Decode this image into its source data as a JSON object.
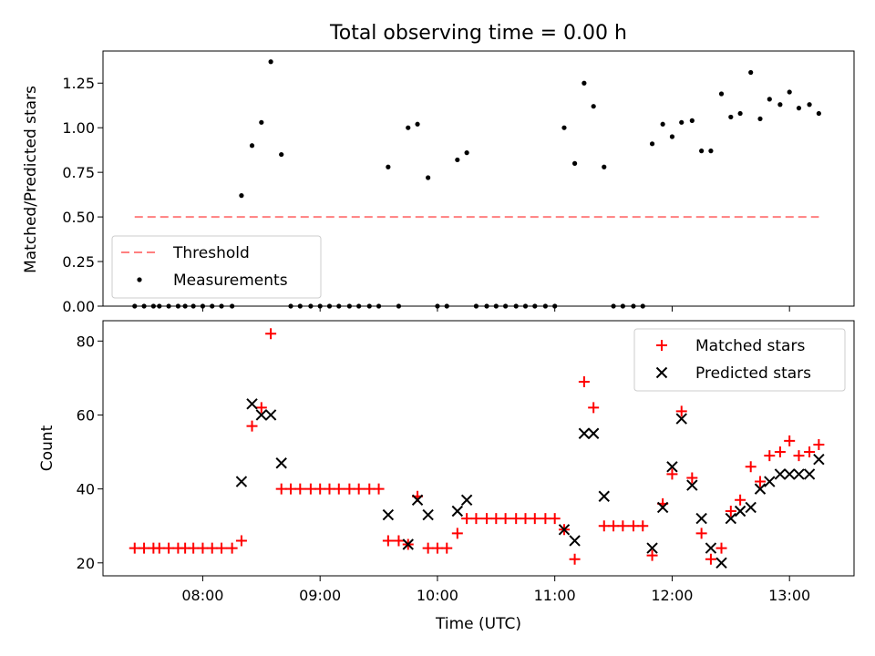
{
  "chart_data": [
    {
      "type": "scatter",
      "title": "Total observing time = 0.00 h",
      "xlabel": "",
      "ylabel": "Matched/Predicted stars",
      "xlim": [
        7.15,
        13.55
      ],
      "ylim": [
        0.0,
        1.43
      ],
      "xticks": [
        8,
        9,
        10,
        11,
        12,
        13
      ],
      "yticks": [
        0.0,
        0.25,
        0.5,
        0.75,
        1.0,
        1.25
      ],
      "ytick_labels": [
        "0.00",
        "0.25",
        "0.50",
        "0.75",
        "1.00",
        "1.25"
      ],
      "legend": {
        "position": "lower-left",
        "entries": [
          "Threshold",
          "Measurements"
        ]
      },
      "threshold": {
        "name": "Threshold",
        "y": 0.5,
        "x_range": [
          7.42,
          13.25
        ],
        "color": "#ff7f7f"
      },
      "series": [
        {
          "name": "Measurements",
          "color": "#000000",
          "x": [
            7.42,
            7.5,
            7.58,
            7.63,
            7.71,
            7.79,
            7.85,
            7.92,
            8.0,
            8.08,
            8.16,
            8.25,
            8.33,
            8.42,
            8.5,
            8.58,
            8.67,
            8.75,
            8.83,
            8.92,
            9.0,
            9.08,
            9.16,
            9.25,
            9.33,
            9.42,
            9.5,
            9.58,
            9.67,
            9.75,
            9.83,
            9.92,
            10.0,
            10.08,
            10.17,
            10.25,
            10.33,
            10.42,
            10.5,
            10.58,
            10.67,
            10.75,
            10.83,
            10.92,
            11.0,
            11.08,
            11.17,
            11.25,
            11.33,
            11.42,
            11.5,
            11.58,
            11.67,
            11.75,
            11.83,
            11.92,
            12.0,
            12.08,
            12.17,
            12.25,
            12.33,
            12.42,
            12.5,
            12.58,
            12.67,
            12.75,
            12.83,
            12.92,
            13.0,
            13.08,
            13.17,
            13.25
          ],
          "y": [
            0,
            0,
            0,
            0,
            0,
            0,
            0,
            0,
            0,
            0,
            0,
            0,
            0.62,
            0.9,
            1.03,
            1.37,
            0.85,
            0,
            0,
            0,
            0,
            0,
            0,
            0,
            0,
            0,
            0,
            0.78,
            0,
            1.0,
            1.02,
            0.72,
            0,
            0,
            0.82,
            0.86,
            0,
            0,
            0,
            0,
            0,
            0,
            0,
            0,
            0,
            1.0,
            0.8,
            1.25,
            1.12,
            0.78,
            0,
            0,
            0,
            0,
            0.91,
            1.02,
            0.95,
            1.03,
            1.04,
            0.87,
            0.87,
            1.19,
            1.06,
            1.08,
            1.31,
            1.05,
            1.16,
            1.13,
            1.2,
            1.11,
            1.13,
            1.08
          ]
        }
      ]
    },
    {
      "type": "scatter",
      "title": "",
      "xlabel": "Time (UTC)",
      "ylabel": "Count",
      "xlim": [
        7.15,
        13.55
      ],
      "ylim": [
        16.5,
        85.5
      ],
      "xticks": [
        8,
        9,
        10,
        11,
        12,
        13
      ],
      "xtick_labels": [
        "08:00",
        "09:00",
        "10:00",
        "11:00",
        "12:00",
        "13:00"
      ],
      "yticks": [
        20,
        40,
        60,
        80
      ],
      "ytick_labels": [
        "20",
        "40",
        "60",
        "80"
      ],
      "legend": {
        "position": "top-right",
        "entries": [
          "Matched stars",
          "Predicted stars"
        ]
      },
      "series": [
        {
          "name": "Matched stars",
          "marker": "plus",
          "color": "#ff0000",
          "x": [
            7.42,
            7.5,
            7.58,
            7.63,
            7.71,
            7.79,
            7.85,
            7.92,
            8.0,
            8.08,
            8.16,
            8.25,
            8.33,
            8.42,
            8.5,
            8.58,
            8.67,
            8.75,
            8.83,
            8.92,
            9.0,
            9.08,
            9.16,
            9.25,
            9.33,
            9.42,
            9.5,
            9.58,
            9.67,
            9.75,
            9.83,
            9.92,
            10.0,
            10.08,
            10.17,
            10.25,
            10.33,
            10.42,
            10.5,
            10.58,
            10.67,
            10.75,
            10.83,
            10.92,
            11.0,
            11.08,
            11.17,
            11.25,
            11.33,
            11.42,
            11.5,
            11.58,
            11.67,
            11.75,
            11.83,
            11.92,
            12.0,
            12.08,
            12.17,
            12.25,
            12.33,
            12.42,
            12.5,
            12.58,
            12.67,
            12.75,
            12.83,
            12.92,
            13.0,
            13.08,
            13.17,
            13.25
          ],
          "y": [
            24,
            24,
            24,
            24,
            24,
            24,
            24,
            24,
            24,
            24,
            24,
            24,
            26,
            57,
            62,
            82,
            40,
            40,
            40,
            40,
            40,
            40,
            40,
            40,
            40,
            40,
            40,
            26,
            26,
            25,
            38,
            24,
            24,
            24,
            28,
            32,
            32,
            32,
            32,
            32,
            32,
            32,
            32,
            32,
            32,
            29,
            21,
            69,
            62,
            30,
            30,
            30,
            30,
            30,
            22,
            36,
            44,
            61,
            43,
            28,
            21,
            24,
            34,
            37,
            46,
            42,
            49,
            50,
            53,
            49,
            50,
            52
          ]
        },
        {
          "name": "Predicted stars",
          "marker": "x",
          "color": "#000000",
          "x": [
            8.33,
            8.42,
            8.5,
            8.58,
            8.67,
            9.58,
            9.75,
            9.83,
            9.92,
            10.17,
            10.25,
            11.08,
            11.17,
            11.25,
            11.33,
            11.42,
            11.83,
            11.92,
            12.0,
            12.08,
            12.17,
            12.25,
            12.33,
            12.42,
            12.5,
            12.58,
            12.67,
            12.75,
            12.83,
            12.92,
            13.0,
            13.08,
            13.17,
            13.25
          ],
          "y": [
            42,
            63,
            60,
            60,
            47,
            33,
            25,
            37,
            33,
            34,
            37,
            29,
            26,
            55,
            55,
            38,
            24,
            35,
            46,
            59,
            41,
            32,
            24,
            20,
            32,
            34,
            35,
            40,
            42,
            44,
            44,
            44,
            44,
            48
          ]
        }
      ]
    }
  ]
}
